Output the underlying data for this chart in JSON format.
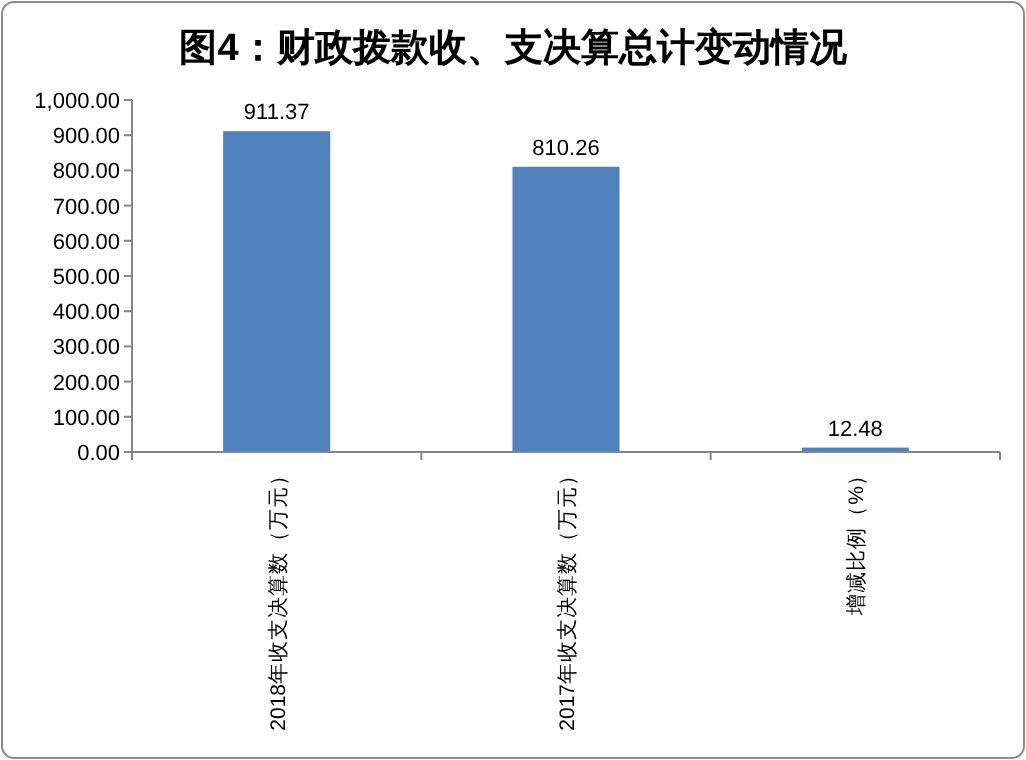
{
  "chart_data": {
    "type": "bar",
    "title": "图4：财政拨款收、支决算总计变动情况",
    "categories": [
      "2018年收支决算数（万元）",
      "2017年收支决算数（万元）",
      "增减比例（%）"
    ],
    "values": [
      911.37,
      810.26,
      12.48
    ],
    "color": "#4f81bd",
    "ylim": [
      0,
      1000
    ],
    "yticks": [
      {
        "value": 0,
        "label": "0.00"
      },
      {
        "value": 100,
        "label": "100.00"
      },
      {
        "value": 200,
        "label": "200.00"
      },
      {
        "value": 300,
        "label": "300.00"
      },
      {
        "value": 400,
        "label": "400.00"
      },
      {
        "value": 500,
        "label": "500.00"
      },
      {
        "value": 600,
        "label": "600.00"
      },
      {
        "value": 700,
        "label": "700.00"
      },
      {
        "value": 800,
        "label": "800.00"
      },
      {
        "value": 900,
        "label": "900.00"
      },
      {
        "value": 1000,
        "label": "1,000.00"
      }
    ],
    "data_labels": true
  }
}
